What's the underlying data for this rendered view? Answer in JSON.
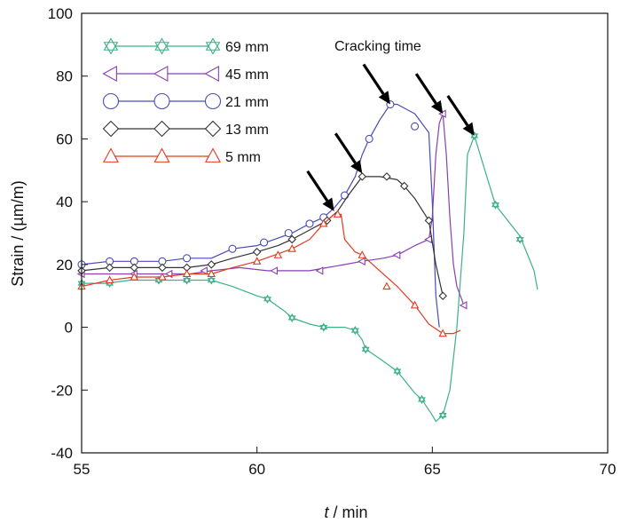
{
  "chart_data": {
    "type": "line",
    "title": "",
    "xlabel": {
      "var": "t",
      "unit": " / min"
    },
    "ylabel": "Strain / (µm/m)",
    "xlim": [
      55,
      70
    ],
    "ylim": [
      -40,
      100
    ],
    "x_ticks": [
      55,
      60,
      65,
      70
    ],
    "y_ticks": [
      -40,
      -20,
      0,
      20,
      40,
      60,
      80,
      100
    ],
    "grid": false,
    "legend_placement": "top-left",
    "annotation": "Cracking time",
    "arrows": [
      {
        "x": 62.2,
        "y": 37
      },
      {
        "x": 63.0,
        "y": 49
      },
      {
        "x": 63.8,
        "y": 71
      },
      {
        "x": 65.3,
        "y": 68
      },
      {
        "x": 66.2,
        "y": 61
      }
    ],
    "series": [
      {
        "name": "69 mm",
        "color": "#3cb08a",
        "marker": "star",
        "points": [
          [
            55,
            14
          ],
          [
            55.7,
            14
          ],
          [
            56.4,
            15
          ],
          [
            57.2,
            15
          ],
          [
            58,
            15
          ],
          [
            58.7,
            15
          ],
          [
            59.3,
            13
          ],
          [
            60,
            10
          ],
          [
            60.3,
            9
          ],
          [
            60.8,
            5
          ],
          [
            61,
            3
          ],
          [
            61.5,
            1
          ],
          [
            61.9,
            0
          ],
          [
            62.5,
            0
          ],
          [
            62.8,
            -1
          ],
          [
            63,
            -4
          ],
          [
            63.1,
            -7
          ],
          [
            63.5,
            -10
          ],
          [
            64,
            -14
          ],
          [
            64.5,
            -21
          ],
          [
            64.7,
            -23
          ],
          [
            65,
            -28
          ],
          [
            65.1,
            -30
          ],
          [
            65.3,
            -28
          ],
          [
            65.5,
            -20
          ],
          [
            65.7,
            0
          ],
          [
            65.9,
            30
          ],
          [
            66,
            55
          ],
          [
            66.2,
            61
          ],
          [
            66.5,
            50
          ],
          [
            66.8,
            39
          ],
          [
            67.5,
            29
          ],
          [
            67.9,
            18
          ],
          [
            68,
            12
          ]
        ],
        "markers": [
          [
            55,
            14
          ],
          [
            55.8,
            14
          ],
          [
            57.2,
            15
          ],
          [
            58,
            15
          ],
          [
            58.7,
            15
          ],
          [
            60.3,
            9
          ],
          [
            61,
            3
          ],
          [
            61.9,
            0
          ],
          [
            62.8,
            -1
          ],
          [
            63.1,
            -7
          ],
          [
            64,
            -14
          ],
          [
            64.7,
            -23
          ],
          [
            65.3,
            -28
          ],
          [
            66.2,
            61
          ],
          [
            66.8,
            39
          ],
          [
            67.5,
            28
          ]
        ]
      },
      {
        "name": "45 mm",
        "color": "#8a3fb0",
        "marker": "triangle-left",
        "points": [
          [
            55,
            17
          ],
          [
            55.7,
            17
          ],
          [
            56.5,
            17
          ],
          [
            57.3,
            17
          ],
          [
            58.1,
            17
          ],
          [
            58.7,
            18
          ],
          [
            59.5,
            19
          ],
          [
            60.3,
            18
          ],
          [
            61,
            18
          ],
          [
            61.5,
            18
          ],
          [
            62,
            19
          ],
          [
            62.5,
            20
          ],
          [
            63,
            21
          ],
          [
            63.6,
            22
          ],
          [
            64,
            23
          ],
          [
            64.5,
            26
          ],
          [
            64.9,
            28
          ],
          [
            65,
            35
          ],
          [
            65.1,
            55
          ],
          [
            65.2,
            65
          ],
          [
            65.3,
            68
          ],
          [
            65.4,
            55
          ],
          [
            65.5,
            35
          ],
          [
            65.6,
            20
          ],
          [
            65.7,
            13
          ],
          [
            65.8,
            10
          ],
          [
            65.9,
            7
          ]
        ],
        "markers": [
          [
            55,
            17
          ],
          [
            56.5,
            17
          ],
          [
            57.5,
            17
          ],
          [
            58.5,
            18
          ],
          [
            60.5,
            18
          ],
          [
            61.8,
            18
          ],
          [
            63,
            21
          ],
          [
            64,
            23
          ],
          [
            64.9,
            28
          ],
          [
            65.3,
            68
          ],
          [
            65.9,
            7
          ]
        ]
      },
      {
        "name": "21 mm",
        "color": "#4a4ab8",
        "marker": "circle",
        "points": [
          [
            55,
            20
          ],
          [
            55.8,
            21
          ],
          [
            56.5,
            21
          ],
          [
            57.3,
            21
          ],
          [
            58,
            22
          ],
          [
            58.7,
            22
          ],
          [
            59.3,
            25
          ],
          [
            60,
            26
          ],
          [
            60.5,
            28
          ],
          [
            61,
            30
          ],
          [
            61.5,
            33
          ],
          [
            61.9,
            35
          ],
          [
            62.2,
            38
          ],
          [
            62.5,
            42
          ],
          [
            62.8,
            48
          ],
          [
            63,
            55
          ],
          [
            63.2,
            60
          ],
          [
            63.5,
            66
          ],
          [
            63.8,
            71
          ],
          [
            64,
            71
          ],
          [
            64.5,
            68
          ],
          [
            64.9,
            62
          ],
          [
            65,
            40
          ],
          [
            65.1,
            10
          ],
          [
            65.2,
            0
          ]
        ],
        "markers": [
          [
            55,
            20
          ],
          [
            55.8,
            21
          ],
          [
            56.5,
            21
          ],
          [
            57.3,
            21
          ],
          [
            58,
            22
          ],
          [
            59.3,
            25
          ],
          [
            60.2,
            27
          ],
          [
            60.9,
            30
          ],
          [
            61.5,
            33
          ],
          [
            61.9,
            35
          ],
          [
            62.5,
            42
          ],
          [
            63.2,
            60
          ],
          [
            63.8,
            71
          ],
          [
            64.5,
            64
          ]
        ]
      },
      {
        "name": "13 mm",
        "color": "#333333",
        "marker": "diamond",
        "points": [
          [
            55,
            18
          ],
          [
            55.8,
            19
          ],
          [
            56.5,
            19
          ],
          [
            57.3,
            19
          ],
          [
            58,
            19
          ],
          [
            58.7,
            20
          ],
          [
            59.3,
            22
          ],
          [
            60,
            24
          ],
          [
            60.6,
            26
          ],
          [
            61,
            28
          ],
          [
            61.5,
            31
          ],
          [
            62,
            34
          ],
          [
            62.3,
            37
          ],
          [
            62.6,
            42
          ],
          [
            63,
            48
          ],
          [
            63.5,
            48
          ],
          [
            64,
            47
          ],
          [
            64.2,
            45
          ],
          [
            64.5,
            41
          ],
          [
            64.9,
            34
          ],
          [
            65.1,
            20
          ],
          [
            65.3,
            10
          ]
        ],
        "markers": [
          [
            55,
            18
          ],
          [
            55.8,
            19
          ],
          [
            56.5,
            19
          ],
          [
            57.3,
            19
          ],
          [
            58,
            19
          ],
          [
            58.7,
            20
          ],
          [
            60,
            24
          ],
          [
            61,
            28
          ],
          [
            62,
            34
          ],
          [
            63,
            48
          ],
          [
            63.7,
            48
          ],
          [
            64.2,
            45
          ],
          [
            64.9,
            34
          ],
          [
            65.3,
            10
          ]
        ]
      },
      {
        "name": "5 mm",
        "color": "#e03b1e",
        "marker": "triangle-up",
        "points": [
          [
            55,
            13
          ],
          [
            55.8,
            15
          ],
          [
            56.5,
            16
          ],
          [
            57.3,
            16
          ],
          [
            58,
            17
          ],
          [
            58.7,
            17
          ],
          [
            59.3,
            19
          ],
          [
            60,
            21
          ],
          [
            60.5,
            23
          ],
          [
            61,
            25
          ],
          [
            61.5,
            28
          ],
          [
            61.9,
            33
          ],
          [
            62.2,
            36
          ],
          [
            62.4,
            36
          ],
          [
            62.5,
            28
          ],
          [
            62.8,
            24
          ],
          [
            63,
            23
          ],
          [
            63.5,
            18
          ],
          [
            64,
            13
          ],
          [
            64.5,
            7
          ],
          [
            64.9,
            1
          ],
          [
            65.3,
            -2
          ],
          [
            65.6,
            -2
          ],
          [
            65.8,
            -1
          ]
        ],
        "markers": [
          [
            55,
            13
          ],
          [
            55.8,
            15
          ],
          [
            56.5,
            16
          ],
          [
            57.3,
            16
          ],
          [
            58,
            17
          ],
          [
            58.7,
            17
          ],
          [
            60,
            21
          ],
          [
            60.6,
            23
          ],
          [
            61,
            25
          ],
          [
            61.9,
            33
          ],
          [
            62.3,
            36
          ],
          [
            63,
            23
          ],
          [
            63.7,
            13
          ],
          [
            64.5,
            7
          ],
          [
            65.3,
            -2
          ]
        ]
      }
    ]
  }
}
